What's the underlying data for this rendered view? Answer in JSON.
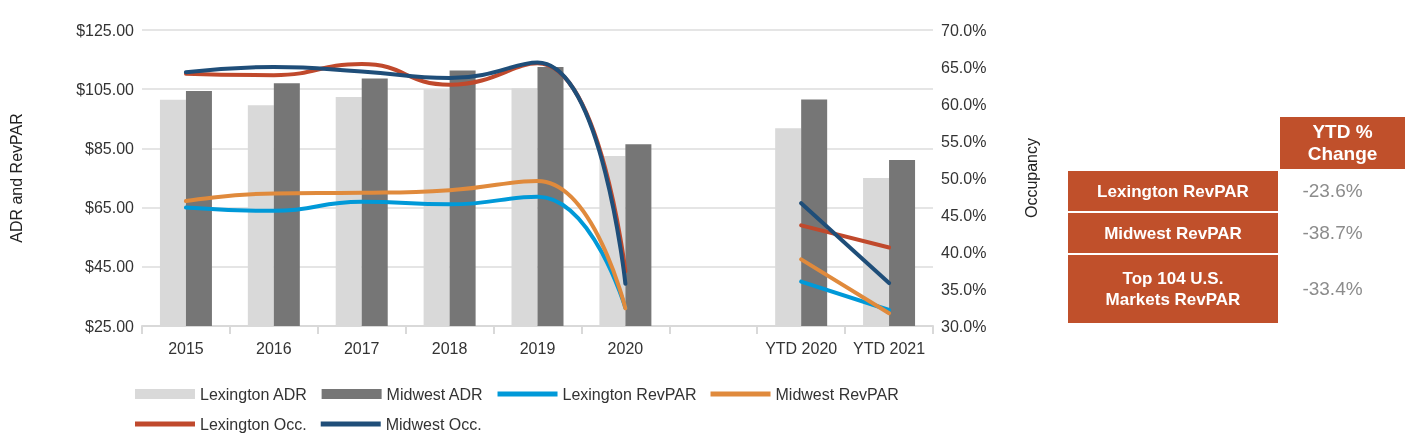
{
  "chart_data": [
    {
      "type": "bar",
      "categories": [
        "2015",
        "2016",
        "2017",
        "2018",
        "2019",
        "2020",
        null,
        "YTD 2020",
        "YTD 2021"
      ],
      "ylabel": "ADR and RevPAR",
      "y2label": "Occupancy",
      "ylim": [
        25,
        125
      ],
      "yticks": [
        {
          "value": 25,
          "label": "$25.00"
        },
        {
          "value": 45,
          "label": "$45.00"
        },
        {
          "value": 65,
          "label": "$65.00"
        },
        {
          "value": 85,
          "label": "$85.00"
        },
        {
          "value": 105,
          "label": "$105.00"
        },
        {
          "value": 125,
          "label": "$125.00"
        }
      ],
      "y2lim": [
        30,
        70
      ],
      "y2ticks": [
        {
          "value": 30,
          "label": "30.0%"
        },
        {
          "value": 35,
          "label": "35.0%"
        },
        {
          "value": 40,
          "label": "40.0%"
        },
        {
          "value": 45,
          "label": "45.0%"
        },
        {
          "value": 50,
          "label": "50.0%"
        },
        {
          "value": 55,
          "label": "55.0%"
        },
        {
          "value": 60,
          "label": "60.0%"
        },
        {
          "value": 65,
          "label": "65.0%"
        },
        {
          "value": 70,
          "label": "70.0%"
        }
      ],
      "grid": "y",
      "legend": "bottom",
      "marker": "none",
      "line_style": "solid",
      "series": [
        {
          "name": "Lexington ADR",
          "color": "#d9d9d9",
          "values": [
            101.4,
            99.6,
            102.4,
            105.0,
            105.3,
            82.4,
            null,
            91.8,
            75.0
          ]
        },
        {
          "name": "Midwest ADR",
          "color": "#767676",
          "values": [
            104.4,
            107.0,
            108.6,
            111.3,
            112.5,
            86.4,
            null,
            101.5,
            81.1
          ]
        },
        {
          "name": "Lexington RevPAR",
          "type": "line",
          "color": "#0099d8",
          "values": [
            65.0,
            63.9,
            67.0,
            66.1,
            68.7,
            31.1,
            null,
            40.0,
            30.4
          ]
        },
        {
          "name": "Midwest RevPAR",
          "type": "line",
          "color": "#e08a3c",
          "values": [
            67.2,
            69.8,
            70.0,
            70.9,
            74.0,
            31.0,
            null,
            47.5,
            29.3
          ]
        },
        {
          "name": "Lexington Occ.",
          "type": "line",
          "axis": "y2",
          "color": "#c0492c",
          "values": [
            64.1,
            63.9,
            65.4,
            62.6,
            65.5,
            37.4,
            null,
            43.6,
            40.6
          ]
        },
        {
          "name": "Midwest Occ.",
          "type": "line",
          "axis": "y2",
          "color": "#1f4e79",
          "values": [
            64.3,
            65.0,
            64.4,
            63.5,
            65.6,
            35.7,
            null,
            46.6,
            35.8
          ]
        }
      ]
    },
    {
      "type": "other",
      "title": "YTD % Change",
      "color": "#c0502b",
      "categories": [
        "Lexington RevPAR",
        "Midwest RevPAR",
        "Top 104 U.S. Markets RevPAR"
      ],
      "value_labels": [
        "-23.6%",
        "-38.7%",
        "-33.4%"
      ]
    }
  ]
}
